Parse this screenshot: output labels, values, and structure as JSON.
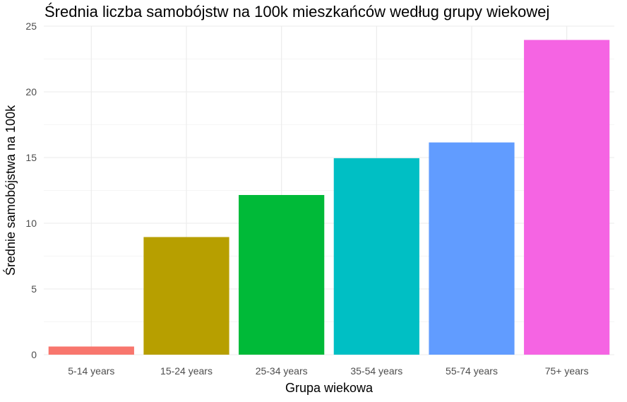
{
  "chart_data": {
    "type": "bar",
    "title": "Średnia liczba samobójstw na 100k mieszkańców według grupy wiekowej",
    "xlabel": "Grupa wiekowa",
    "ylabel": "Średnie samobójstwa na 100k",
    "categories": [
      "5-14 years",
      "15-24 years",
      "25-34 years",
      "35-54 years",
      "55-74 years",
      "75+ years"
    ],
    "values": [
      0.62,
      8.95,
      12.15,
      14.95,
      16.15,
      23.95
    ],
    "colors": [
      "#F8766D",
      "#B79F00",
      "#00BA38",
      "#00BFC4",
      "#619CFF",
      "#F564E3"
    ],
    "ylim": [
      0,
      25
    ],
    "yticks": [
      "0",
      "5",
      "10",
      "15",
      "20",
      "25"
    ],
    "grid": true,
    "legend": "none"
  }
}
